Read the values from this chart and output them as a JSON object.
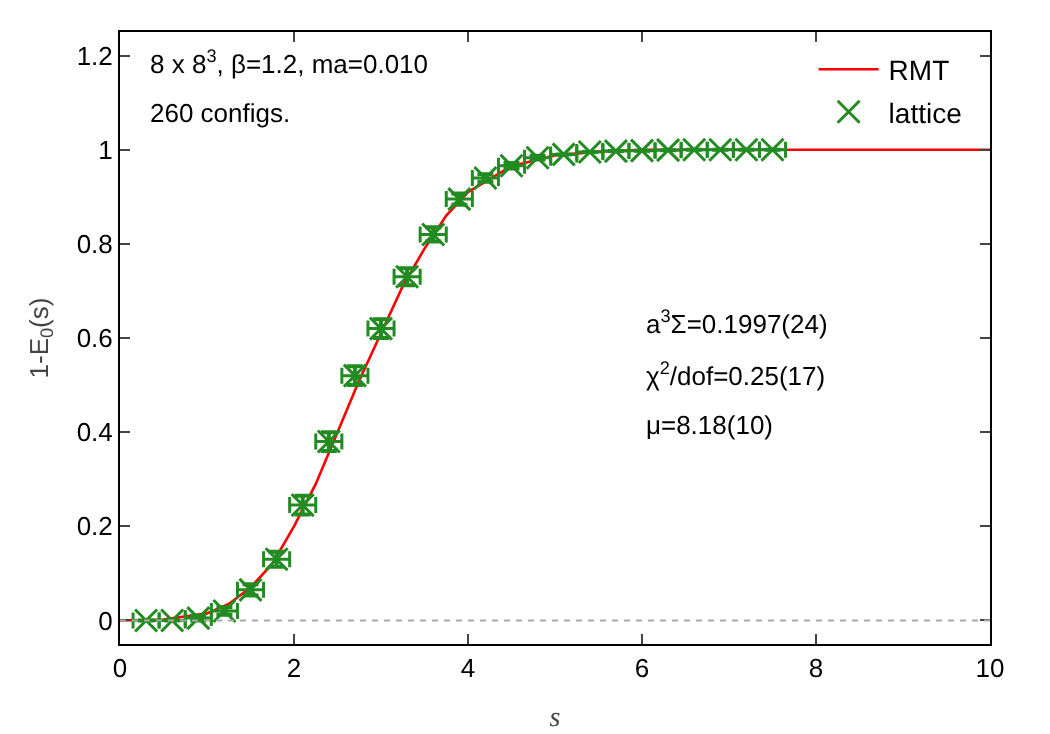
{
  "chart_data": {
    "type": "line",
    "xlabel": "s",
    "ylabel": "1-E$_{0}$(s)",
    "xlim": [
      0,
      10
    ],
    "xticks": [
      0,
      2,
      4,
      6,
      8,
      10
    ],
    "ylim": [
      -0.05,
      1.25
    ],
    "yticks": [
      0,
      0.2,
      0.4,
      0.6,
      0.8,
      1,
      1.2
    ],
    "grid": false,
    "legend": "top right",
    "series": [
      {
        "name": "RMT",
        "color": "#ff0000",
        "marker": "none",
        "x": [
          0,
          0.5,
          1,
          1.25,
          1.5,
          1.75,
          2,
          2.25,
          2.5,
          2.75,
          3,
          3.25,
          3.5,
          3.75,
          4,
          4.5,
          5,
          5.5,
          6,
          10
        ],
        "values": [
          0,
          0.002,
          0.015,
          0.035,
          0.07,
          0.12,
          0.2,
          0.29,
          0.4,
          0.51,
          0.61,
          0.71,
          0.79,
          0.86,
          0.91,
          0.965,
          0.988,
          0.996,
          1,
          1
        ]
      },
      {
        "name": "lattice",
        "type": "scatter",
        "color": "#228b22",
        "marker": "cross",
        "x": [
          0.3,
          0.6,
          0.9,
          1.2,
          1.5,
          1.8,
          2.1,
          2.4,
          2.7,
          3.0,
          3.3,
          3.6,
          3.9,
          4.2,
          4.5,
          4.8,
          5.1,
          5.4,
          5.7,
          6.0,
          6.3,
          6.6,
          6.9,
          7.2,
          7.5
        ],
        "values": [
          0,
          0,
          0.005,
          0.02,
          0.065,
          0.13,
          0.245,
          0.38,
          0.52,
          0.62,
          0.73,
          0.82,
          0.895,
          0.94,
          0.966,
          0.983,
          0.99,
          0.995,
          0.997,
          0.998,
          0.999,
          1,
          1,
          1,
          1
        ],
        "errors": [
          null,
          null,
          0.005,
          0.008,
          0.012,
          0.016,
          0.02,
          0.02,
          0.02,
          0.02,
          0.018,
          0.015,
          0.012,
          0.008,
          0.006,
          0.004,
          null,
          null,
          null,
          null,
          null,
          null,
          null,
          null,
          null
        ],
        "xerrors": [
          0.15,
          0.15,
          0.15,
          0.15,
          0.15,
          0.15,
          0.15,
          0.15,
          0.15,
          0.15,
          0.15,
          0.15,
          0.15,
          0.15,
          0.15,
          0.15,
          0.15,
          0.15,
          0.15,
          0.15,
          0.15,
          0.15,
          0.15,
          0.15,
          0.15
        ]
      }
    ],
    "ref_lines": [
      {
        "axis": "y",
        "value": 0,
        "color": "#aaaaaa",
        "line_style": "dotted"
      }
    ],
    "annotations": [
      "8 x 8$^{3}$, β=1.2, ma=0.010",
      "260 configs.",
      "a$^{3}$Σ=0.1997(24)",
      "χ$^{2}$/dof=0.25(17)",
      "μ=8.18(10)"
    ]
  }
}
